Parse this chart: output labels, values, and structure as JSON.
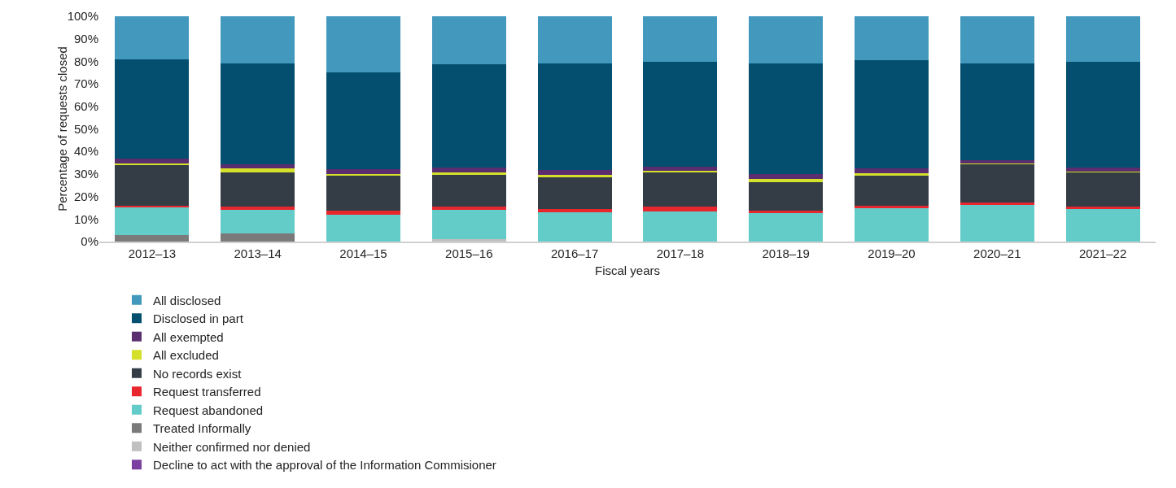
{
  "chart_data": {
    "type": "bar",
    "stacked": true,
    "xlabel": "Fiscal years",
    "ylabel": "Percentage of requests closed",
    "categories": [
      "2012–13",
      "2013–14",
      "2014–15",
      "2015–16",
      "2016–17",
      "2017–18",
      "2018–19",
      "2019–20",
      "2020–21",
      "2021–22"
    ],
    "series": [
      {
        "name": "Decline to act with the approval of the Information Commisioner",
        "color": "#7b3fa0",
        "values": [
          0,
          0,
          0,
          0,
          0,
          0,
          0,
          0,
          0,
          0
        ]
      },
      {
        "name": "Neither confirmed nor denied",
        "color": "#c0c0c0",
        "values": [
          0,
          0,
          0,
          1.0,
          0,
          0,
          0,
          0,
          0,
          0
        ]
      },
      {
        "name": "Treated Informally",
        "color": "#7a7a7a",
        "values": [
          2.9,
          3.5,
          0,
          0,
          0,
          0,
          0,
          0,
          0,
          0
        ]
      },
      {
        "name": "Request abandoned",
        "color": "#63ccc8",
        "values": [
          12.1,
          10.5,
          11.9,
          13.2,
          13.1,
          13.5,
          12.7,
          14.8,
          16.1,
          14.5
        ]
      },
      {
        "name": "Request transferred",
        "color": "#e8262e",
        "values": [
          0.9,
          1.5,
          1.7,
          1.5,
          1.4,
          1.9,
          1.2,
          1.1,
          1.4,
          0.9
        ]
      },
      {
        "name": "No records exist",
        "color": "#343d46",
        "values": [
          17.9,
          15.3,
          15.8,
          14.0,
          14.0,
          15.2,
          12.6,
          13.5,
          16.7,
          15.2
        ]
      },
      {
        "name": "All excluded",
        "color": "#d4e02a",
        "values": [
          1.0,
          1.6,
          0.7,
          0.9,
          1.0,
          0.9,
          1.3,
          1.0,
          0.4,
          0.5
        ]
      },
      {
        "name": "All exempted",
        "color": "#5a2d6e",
        "values": [
          2.2,
          2.0,
          2.1,
          2.3,
          2.2,
          1.7,
          2.1,
          2.0,
          1.6,
          1.6
        ]
      },
      {
        "name": "Disclosed in part",
        "color": "#044f6f",
        "values": [
          43.7,
          44.6,
          43.0,
          45.9,
          47.3,
          46.5,
          49.3,
          48.0,
          43.0,
          47.0
        ]
      },
      {
        "name": "All disclosed",
        "color": "#4299bd",
        "values": [
          19.3,
          21.0,
          24.8,
          21.2,
          21.0,
          20.3,
          20.8,
          19.6,
          20.8,
          20.3
        ]
      }
    ],
    "ylim": [
      0,
      100
    ],
    "yticks": [
      {
        "value": 0,
        "label": "0%"
      },
      {
        "value": 10,
        "label": "10%"
      },
      {
        "value": 20,
        "label": "20%"
      },
      {
        "value": 30,
        "label": "30%"
      },
      {
        "value": 40,
        "label": "40%"
      },
      {
        "value": 50,
        "label": "50%"
      },
      {
        "value": 60,
        "label": "60%"
      },
      {
        "value": 70,
        "label": "70%"
      },
      {
        "value": 80,
        "label": "80%"
      },
      {
        "value": 90,
        "label": "90%"
      },
      {
        "value": 100,
        "label": "100%"
      }
    ],
    "grid": false,
    "legend": "bottom"
  }
}
